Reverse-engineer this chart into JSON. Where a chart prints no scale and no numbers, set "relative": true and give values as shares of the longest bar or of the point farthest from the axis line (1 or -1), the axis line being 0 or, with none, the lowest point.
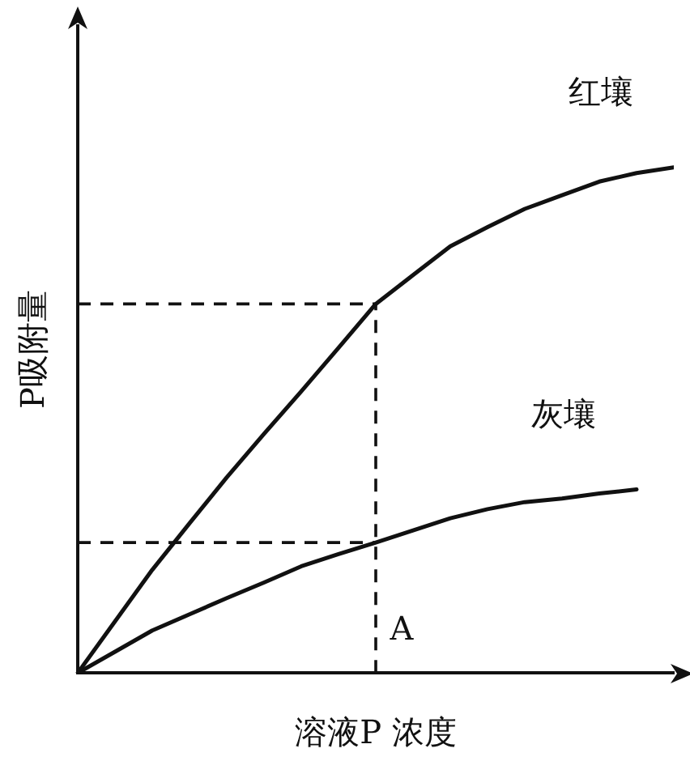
{
  "chart_data": {
    "type": "line",
    "relative": true,
    "xlabel": "溶液P 浓度",
    "ylabel": "P吸附量",
    "legend": false,
    "grid": false,
    "marker": "none",
    "line_style": "solid",
    "categories": [
      null,
      null,
      null,
      null,
      null,
      null,
      null,
      null,
      null,
      null,
      null,
      null,
      null,
      null,
      null,
      null,
      null
    ],
    "series": [
      {
        "name": "红壤",
        "color": "#111111",
        "values": [
          0,
          0.102,
          0.204,
          0.296,
          0.387,
          0.473,
          0.557,
          0.643,
          0.73,
          0.787,
          0.844,
          0.882,
          0.918,
          0.945,
          0.972,
          0.989,
          1
        ]
      },
      {
        "name": "灰壤",
        "color": "#111111",
        "values": [
          0,
          0.042,
          0.084,
          0.116,
          0.148,
          0.179,
          0.211,
          0.235,
          0.258,
          0.282,
          0.306,
          0.324,
          0.338,
          0.345,
          0.355,
          0.363,
          null
        ]
      }
    ],
    "ref_lines": [
      {
        "axis": "y",
        "value": 0.73,
        "line_style": "dashed"
      },
      {
        "axis": "y",
        "value": 0.258,
        "line_style": "dashed"
      }
    ],
    "annotations": [
      "A"
    ]
  }
}
